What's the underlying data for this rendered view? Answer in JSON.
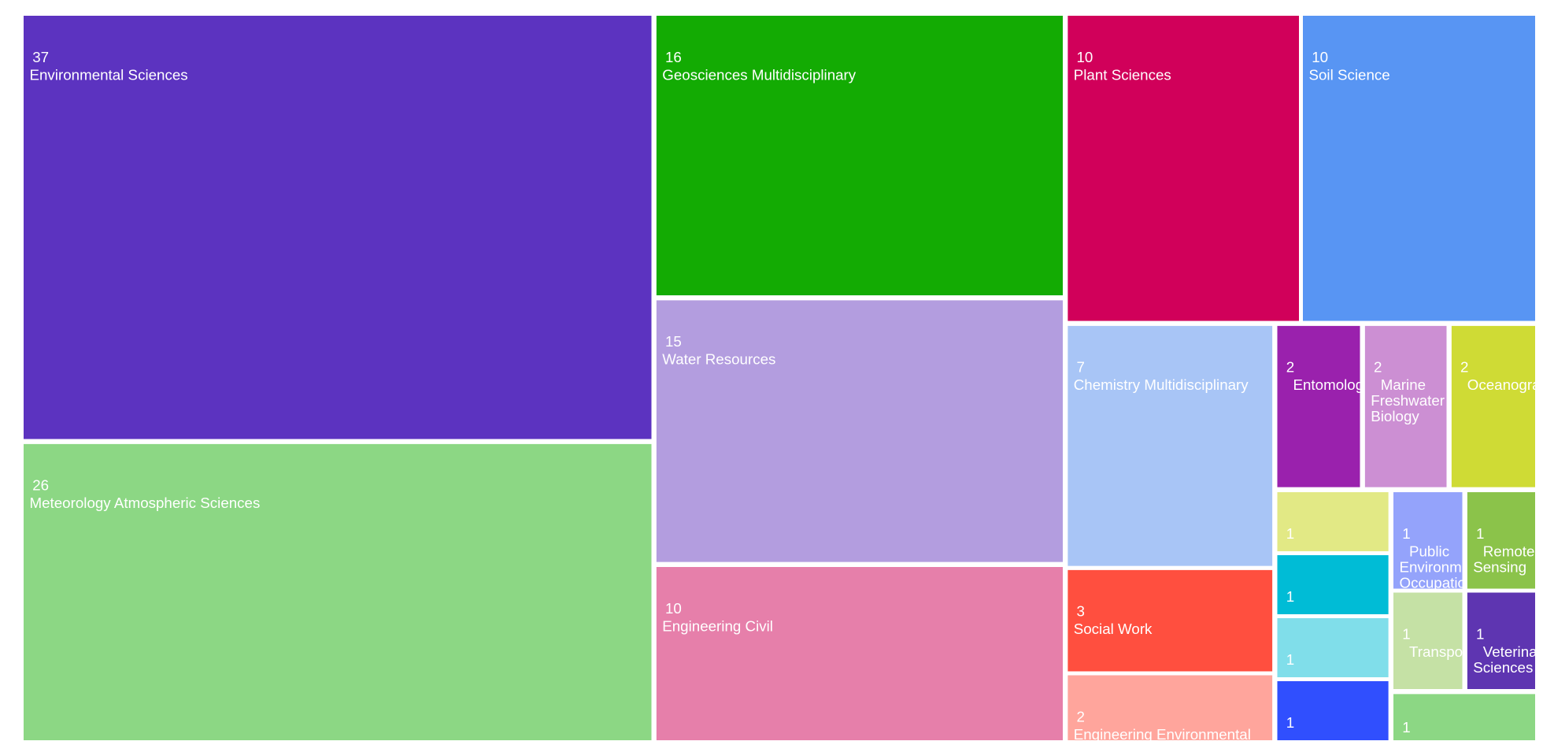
{
  "chart_data": {
    "type": "treemap",
    "categories": [
      "Environmental Sciences",
      "Meteorology Atmospheric Sciences",
      "Geosciences Multidisciplinary",
      "Water Resources",
      "Engineering Civil",
      "Plant Sciences",
      "Soil Science",
      "Chemistry Multidisciplinary",
      "Social Work",
      "Engineering Environmental",
      "Entomology",
      "Marine Freshwater Biology",
      "Oceanography",
      null,
      null,
      null,
      null,
      "Public Environmental Occupational Health",
      "Remote Sensing",
      "Transportation",
      "Veterinary Sciences",
      null
    ],
    "values": [
      37,
      26,
      16,
      15,
      10,
      10,
      10,
      7,
      3,
      2,
      2,
      2,
      2,
      1,
      1,
      1,
      1,
      1,
      1,
      1,
      1,
      1
    ],
    "colors": [
      "#5c33c0",
      "#8cd784",
      "#13ab03",
      "#b39ddf",
      "#e67faa",
      "#d1005a",
      "#5895f3",
      "#a8c5f6",
      "#ff4f3f",
      "#ffa59c",
      "#9a21ad",
      "#cc8fd3",
      "#cfdb35",
      "#e2e985",
      "#00bcd6",
      "#80deea",
      "#304ffe",
      "#94a3fb",
      "#8bc34a",
      "#c5e1a5",
      "#5e35b1",
      "#8cd784"
    ]
  }
}
